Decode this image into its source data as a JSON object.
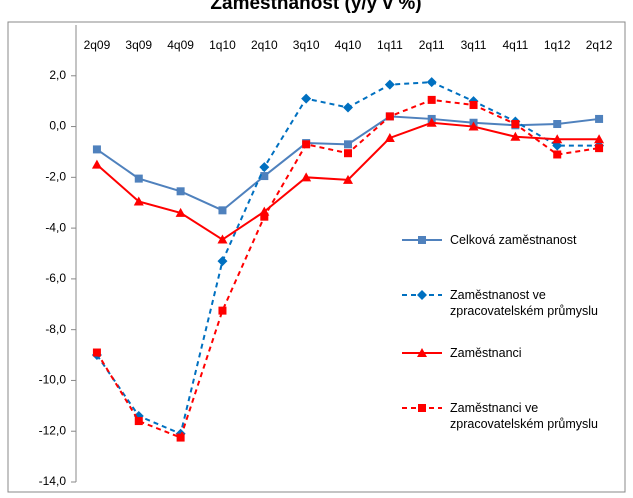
{
  "chart_data": {
    "type": "line",
    "title": "Zaměstnanost (y/y v %)",
    "categories": [
      "2q09",
      "3q09",
      "4q09",
      "1q10",
      "2q10",
      "3q10",
      "4q10",
      "1q11",
      "2q11",
      "3q11",
      "4q11",
      "1q12",
      "2q12"
    ],
    "ylim": [
      -14,
      4
    ],
    "yticks": [
      {
        "value": -14,
        "label": "-14,0"
      },
      {
        "value": -12,
        "label": "-12,0"
      },
      {
        "value": -10,
        "label": "-10,0"
      },
      {
        "value": -8,
        "label": "-8,0"
      },
      {
        "value": -6,
        "label": "-6,0"
      },
      {
        "value": -4,
        "label": "-4,0"
      },
      {
        "value": -2,
        "label": "-2,0"
      },
      {
        "value": 0,
        "label": "0,0"
      },
      {
        "value": 2,
        "label": "2,0"
      }
    ],
    "grid": false,
    "series": [
      {
        "name": "Celková zaměstnanost",
        "color": "#4f81bd",
        "dash": false,
        "marker": "square",
        "values": [
          -0.9,
          -2.05,
          -2.55,
          -3.3,
          -1.95,
          -0.65,
          -0.7,
          0.4,
          0.3,
          0.15,
          0.05,
          0.1,
          0.3
        ]
      },
      {
        "name": "Zaměstnanost ve zpracovatelském průmyslu",
        "color": "#0070c0",
        "dash": true,
        "marker": "diamond",
        "values": [
          -9.0,
          -11.4,
          -12.1,
          -5.3,
          -1.6,
          1.1,
          0.75,
          1.65,
          1.75,
          1.0,
          0.2,
          -0.75,
          -0.75
        ]
      },
      {
        "name": "Zaměstnanci",
        "color": "#ff0000",
        "dash": false,
        "marker": "triangle",
        "values": [
          -1.5,
          -2.95,
          -3.4,
          -4.45,
          -3.35,
          -2.0,
          -2.1,
          -0.45,
          0.15,
          0.0,
          -0.4,
          -0.5,
          -0.5
        ]
      },
      {
        "name": "Zaměstnanci ve zpracovatelském průmyslu",
        "color": "#ff0000",
        "dash": true,
        "marker": "square",
        "values": [
          -8.9,
          -11.6,
          -12.25,
          -7.25,
          -3.55,
          -0.7,
          -1.05,
          0.4,
          1.05,
          0.85,
          0.1,
          -1.1,
          -0.85
        ]
      }
    ]
  }
}
